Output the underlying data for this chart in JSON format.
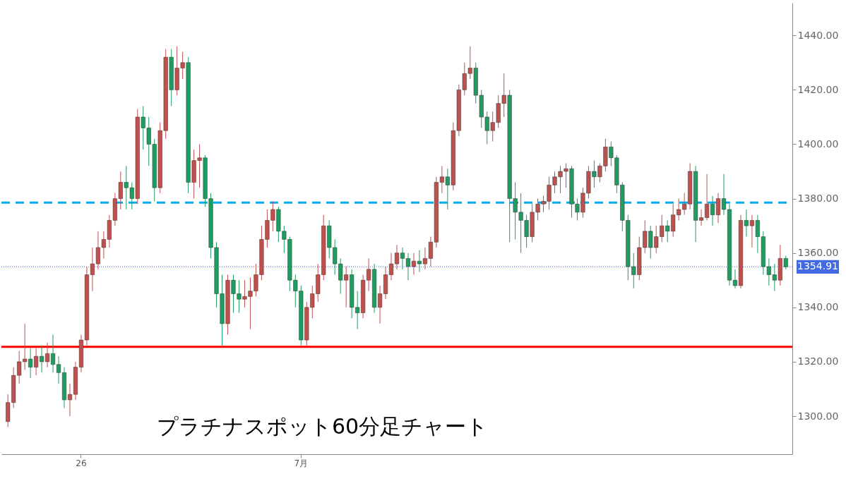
{
  "chart_data": {
    "type": "candlestick",
    "annotations": [
      "プラチナスポット60分足チャート"
    ],
    "categories": [
      null,
      null,
      null,
      null,
      null,
      null,
      null,
      null,
      null,
      null,
      null,
      null,
      null,
      "26",
      null,
      null,
      null,
      null,
      null,
      null,
      null,
      null,
      null,
      null,
      null,
      null,
      null,
      null,
      null,
      null,
      null,
      null,
      null,
      null,
      null,
      null,
      null,
      null,
      null,
      null,
      null,
      null,
      null,
      null,
      null,
      null,
      null,
      null,
      null,
      null,
      null,
      null,
      "7月",
      null,
      null,
      null,
      null,
      null,
      null,
      null,
      null,
      null,
      null,
      null,
      null,
      null,
      null,
      null,
      null,
      null,
      null,
      null,
      null,
      null,
      null,
      null,
      null,
      null,
      null,
      null,
      null,
      null,
      null,
      null,
      null,
      null,
      null,
      null,
      null,
      null,
      null,
      null,
      null,
      null,
      null,
      null,
      null,
      null,
      null,
      null,
      null,
      null,
      null,
      null,
      null,
      null,
      null,
      null,
      null,
      null,
      null,
      null,
      null,
      null,
      null,
      null,
      null,
      null,
      null,
      null,
      null,
      null,
      null,
      null,
      null,
      null,
      null,
      null,
      null,
      null,
      null,
      null,
      null,
      null,
      null,
      null,
      null,
      null,
      null
    ],
    "ohlc": [
      [
        1298,
        1308,
        1296,
        1305
      ],
      [
        1305,
        1318,
        1303,
        1315
      ],
      [
        1315,
        1324,
        1312,
        1320
      ],
      [
        1320,
        1334,
        1317,
        1321
      ],
      [
        1321,
        1325,
        1314,
        1318
      ],
      [
        1318,
        1325,
        1315,
        1322
      ],
      [
        1322,
        1326,
        1316,
        1320
      ],
      [
        1320,
        1327,
        1318,
        1323
      ],
      [
        1323,
        1330,
        1316,
        1319
      ],
      [
        1319,
        1322,
        1312,
        1316
      ],
      [
        1316,
        1318,
        1303,
        1306
      ],
      [
        1306,
        1312,
        1300,
        1308
      ],
      [
        1308,
        1320,
        1306,
        1318
      ],
      [
        1318,
        1330,
        1316,
        1328
      ],
      [
        1328,
        1355,
        1326,
        1352
      ],
      [
        1352,
        1362,
        1346,
        1356
      ],
      [
        1356,
        1368,
        1354,
        1362
      ],
      [
        1362,
        1368,
        1358,
        1365
      ],
      [
        1365,
        1374,
        1362,
        1372
      ],
      [
        1372,
        1382,
        1370,
        1380
      ],
      [
        1380,
        1390,
        1376,
        1386
      ],
      [
        1386,
        1392,
        1376,
        1384
      ],
      [
        1384,
        1386,
        1376,
        1380
      ],
      [
        1380,
        1413,
        1378,
        1410
      ],
      [
        1410,
        1414,
        1398,
        1406
      ],
      [
        1406,
        1410,
        1392,
        1400
      ],
      [
        1400,
        1402,
        1379,
        1384
      ],
      [
        1384,
        1408,
        1382,
        1405
      ],
      [
        1405,
        1435,
        1402,
        1432
      ],
      [
        1432,
        1435,
        1414,
        1420
      ],
      [
        1420,
        1436,
        1418,
        1428
      ],
      [
        1428,
        1434,
        1424,
        1430
      ],
      [
        1430,
        1432,
        1382,
        1386
      ],
      [
        1386,
        1398,
        1380,
        1394
      ],
      [
        1394,
        1400,
        1384,
        1395
      ],
      [
        1395,
        1396,
        1377,
        1380
      ],
      [
        1380,
        1382,
        1358,
        1362
      ],
      [
        1362,
        1364,
        1340,
        1345
      ],
      [
        1345,
        1352,
        1326,
        1334
      ],
      [
        1334,
        1352,
        1330,
        1350
      ],
      [
        1350,
        1352,
        1338,
        1345
      ],
      [
        1345,
        1350,
        1338,
        1343
      ],
      [
        1343,
        1350,
        1340,
        1344
      ],
      [
        1344,
        1351,
        1332,
        1346
      ],
      [
        1346,
        1356,
        1344,
        1352
      ],
      [
        1352,
        1370,
        1350,
        1365
      ],
      [
        1365,
        1376,
        1362,
        1372
      ],
      [
        1372,
        1379,
        1368,
        1376
      ],
      [
        1376,
        1377,
        1364,
        1368
      ],
      [
        1368,
        1370,
        1360,
        1365
      ],
      [
        1365,
        1366,
        1346,
        1350
      ],
      [
        1350,
        1352,
        1340,
        1346
      ],
      [
        1346,
        1348,
        1326,
        1328
      ],
      [
        1328,
        1342,
        1326,
        1340
      ],
      [
        1340,
        1348,
        1336,
        1345
      ],
      [
        1345,
        1356,
        1342,
        1352
      ],
      [
        1352,
        1374,
        1350,
        1370
      ],
      [
        1370,
        1372,
        1358,
        1362
      ],
      [
        1362,
        1365,
        1352,
        1356
      ],
      [
        1356,
        1358,
        1345,
        1350
      ],
      [
        1350,
        1355,
        1340,
        1352
      ],
      [
        1352,
        1354,
        1336,
        1340
      ],
      [
        1340,
        1346,
        1332,
        1338
      ],
      [
        1338,
        1352,
        1336,
        1350
      ],
      [
        1350,
        1358,
        1346,
        1354
      ],
      [
        1354,
        1356,
        1338,
        1340
      ],
      [
        1340,
        1348,
        1334,
        1345
      ],
      [
        1345,
        1355,
        1343,
        1352
      ],
      [
        1352,
        1360,
        1350,
        1356
      ],
      [
        1356,
        1363,
        1354,
        1360
      ],
      [
        1360,
        1362,
        1354,
        1358
      ],
      [
        1358,
        1360,
        1350,
        1355
      ],
      [
        1355,
        1360,
        1352,
        1357
      ],
      [
        1357,
        1361,
        1353,
        1356
      ],
      [
        1356,
        1362,
        1354,
        1358
      ],
      [
        1358,
        1366,
        1355,
        1364
      ],
      [
        1364,
        1388,
        1362,
        1386
      ],
      [
        1386,
        1392,
        1382,
        1388
      ],
      [
        1388,
        1391,
        1376,
        1385
      ],
      [
        1385,
        1408,
        1383,
        1405
      ],
      [
        1405,
        1422,
        1403,
        1420
      ],
      [
        1420,
        1430,
        1418,
        1426
      ],
      [
        1426,
        1436,
        1424,
        1428
      ],
      [
        1428,
        1430,
        1415,
        1418
      ],
      [
        1418,
        1420,
        1406,
        1410
      ],
      [
        1410,
        1412,
        1400,
        1405
      ],
      [
        1405,
        1412,
        1401,
        1408
      ],
      [
        1408,
        1418,
        1406,
        1415
      ],
      [
        1415,
        1426,
        1410,
        1418
      ],
      [
        1418,
        1420,
        1364,
        1380
      ],
      [
        1380,
        1386,
        1365,
        1375
      ],
      [
        1375,
        1382,
        1360,
        1372
      ],
      [
        1372,
        1374,
        1362,
        1366
      ],
      [
        1366,
        1378,
        1364,
        1375
      ],
      [
        1375,
        1380,
        1372,
        1378
      ],
      [
        1378,
        1381,
        1375,
        1379
      ],
      [
        1379,
        1388,
        1376,
        1385
      ],
      [
        1385,
        1390,
        1382,
        1388
      ],
      [
        1388,
        1392,
        1382,
        1390
      ],
      [
        1390,
        1393,
        1384,
        1391
      ],
      [
        1391,
        1392,
        1373,
        1378
      ],
      [
        1378,
        1380,
        1372,
        1375
      ],
      [
        1375,
        1384,
        1373,
        1382
      ],
      [
        1382,
        1392,
        1380,
        1390
      ],
      [
        1390,
        1394,
        1384,
        1388
      ],
      [
        1388,
        1393,
        1386,
        1392
      ],
      [
        1392,
        1402,
        1390,
        1399
      ],
      [
        1399,
        1401,
        1392,
        1395
      ],
      [
        1395,
        1396,
        1382,
        1385
      ],
      [
        1385,
        1386,
        1368,
        1372
      ],
      [
        1372,
        1374,
        1350,
        1355
      ],
      [
        1355,
        1360,
        1347,
        1352
      ],
      [
        1352,
        1366,
        1350,
        1362
      ],
      [
        1362,
        1372,
        1360,
        1368
      ],
      [
        1368,
        1370,
        1358,
        1362
      ],
      [
        1362,
        1370,
        1360,
        1366
      ],
      [
        1366,
        1374,
        1364,
        1370
      ],
      [
        1370,
        1372,
        1364,
        1368
      ],
      [
        1368,
        1378,
        1366,
        1374
      ],
      [
        1374,
        1380,
        1372,
        1376
      ],
      [
        1376,
        1382,
        1374,
        1378
      ],
      [
        1378,
        1393,
        1376,
        1390
      ],
      [
        1390,
        1392,
        1364,
        1372
      ],
      [
        1372,
        1376,
        1370,
        1373
      ],
      [
        1373,
        1389,
        1372,
        1378
      ],
      [
        1378,
        1381,
        1370,
        1374
      ],
      [
        1374,
        1382,
        1371,
        1380
      ],
      [
        1380,
        1389,
        1374,
        1376
      ],
      [
        1376,
        1378,
        1348,
        1350
      ],
      [
        1350,
        1354,
        1347,
        1348
      ],
      [
        1348,
        1374,
        1347,
        1372
      ],
      [
        1372,
        1376,
        1366,
        1370
      ],
      [
        1370,
        1374,
        1362,
        1372
      ],
      [
        1372,
        1374,
        1360,
        1366
      ],
      [
        1366,
        1368,
        1352,
        1355
      ],
      [
        1355,
        1358,
        1348,
        1352
      ],
      [
        1352,
        1356,
        1346,
        1350
      ],
      [
        1350,
        1363,
        1348,
        1358
      ],
      [
        1358,
        1359,
        1354,
        1354.91
      ]
    ],
    "colors": [
      "#c0504d",
      "#c0504d",
      "#c0504d",
      "#c0504d",
      "#1f9c5f",
      "#c0504d",
      "#1f9c5f",
      "#c0504d",
      "#1f9c5f",
      "#1f9c5f",
      "#1f9c5f",
      "#c0504d",
      "#c0504d",
      "#c0504d",
      "#c0504d",
      "#c0504d",
      "#c0504d",
      "#c0504d",
      "#c0504d",
      "#c0504d",
      "#c0504d",
      "#1f9c5f",
      "#1f9c5f",
      "#c0504d",
      "#1f9c5f",
      "#1f9c5f",
      "#1f9c5f",
      "#c0504d",
      "#c0504d",
      "#1f9c5f",
      "#c0504d",
      "#c0504d",
      "#1f9c5f",
      "#c0504d",
      "#c0504d",
      "#1f9c5f",
      "#1f9c5f",
      "#1f9c5f",
      "#1f9c5f",
      "#c0504d",
      "#1f9c5f",
      "#1f9c5f",
      "#c0504d",
      "#c0504d",
      "#c0504d",
      "#c0504d",
      "#c0504d",
      "#c0504d",
      "#1f9c5f",
      "#1f9c5f",
      "#1f9c5f",
      "#1f9c5f",
      "#1f9c5f",
      "#c0504d",
      "#c0504d",
      "#c0504d",
      "#c0504d",
      "#1f9c5f",
      "#1f9c5f",
      "#1f9c5f",
      "#c0504d",
      "#1f9c5f",
      "#1f9c5f",
      "#c0504d",
      "#c0504d",
      "#1f9c5f",
      "#c0504d",
      "#c0504d",
      "#c0504d",
      "#c0504d",
      "#1f9c5f",
      "#1f9c5f",
      "#c0504d",
      "#1f9c5f",
      "#c0504d",
      "#c0504d",
      "#c0504d",
      "#c0504d",
      "#1f9c5f",
      "#c0504d",
      "#c0504d",
      "#c0504d",
      "#c0504d",
      "#1f9c5f",
      "#1f9c5f",
      "#1f9c5f",
      "#c0504d",
      "#c0504d",
      "#c0504d",
      "#1f9c5f",
      "#1f9c5f",
      "#1f9c5f",
      "#1f9c5f",
      "#c0504d",
      "#c0504d",
      "#c0504d",
      "#c0504d",
      "#c0504d",
      "#c0504d",
      "#c0504d",
      "#1f9c5f",
      "#1f9c5f",
      "#c0504d",
      "#c0504d",
      "#1f9c5f",
      "#c0504d",
      "#c0504d",
      "#1f9c5f",
      "#1f9c5f",
      "#1f9c5f",
      "#1f9c5f",
      "#1f9c5f",
      "#c0504d",
      "#c0504d",
      "#1f9c5f",
      "#c0504d",
      "#c0504d",
      "#1f9c5f",
      "#c0504d",
      "#c0504d",
      "#c0504d",
      "#c0504d",
      "#1f9c5f",
      "#c0504d",
      "#c0504d",
      "#1f9c5f",
      "#c0504d",
      "#1f9c5f",
      "#1f9c5f",
      "#1f9c5f",
      "#c0504d",
      "#1f9c5f",
      "#c0504d",
      "#1f9c5f",
      "#1f9c5f",
      "#1f9c5f",
      "#1f9c5f",
      "#c0504d",
      "#1f9c5f"
    ],
    "ylim": [
      1286,
      1452
    ],
    "yticks": [
      {
        "value": 1300,
        "label": "1300.00"
      },
      {
        "value": 1320,
        "label": "1320.00"
      },
      {
        "value": 1340,
        "label": "1340.00"
      },
      {
        "value": 1360,
        "label": "1360.00"
      },
      {
        "value": 1380,
        "label": "1380.00"
      },
      {
        "value": 1400,
        "label": "1400.00"
      },
      {
        "value": 1420,
        "label": "1420.00"
      },
      {
        "value": 1440,
        "label": "1440.00"
      }
    ],
    "ref_lines": [
      {
        "axis": "y",
        "value": 1378.5,
        "color": "#00aeef",
        "line_style": "dashed"
      },
      {
        "axis": "y",
        "value": 1325.5,
        "color": "#ff0000",
        "line_style": "solid"
      },
      {
        "axis": "y",
        "value": 1354.91,
        "label": "1354.91",
        "color": "#4169e1",
        "line_style": "dotted"
      }
    ]
  }
}
